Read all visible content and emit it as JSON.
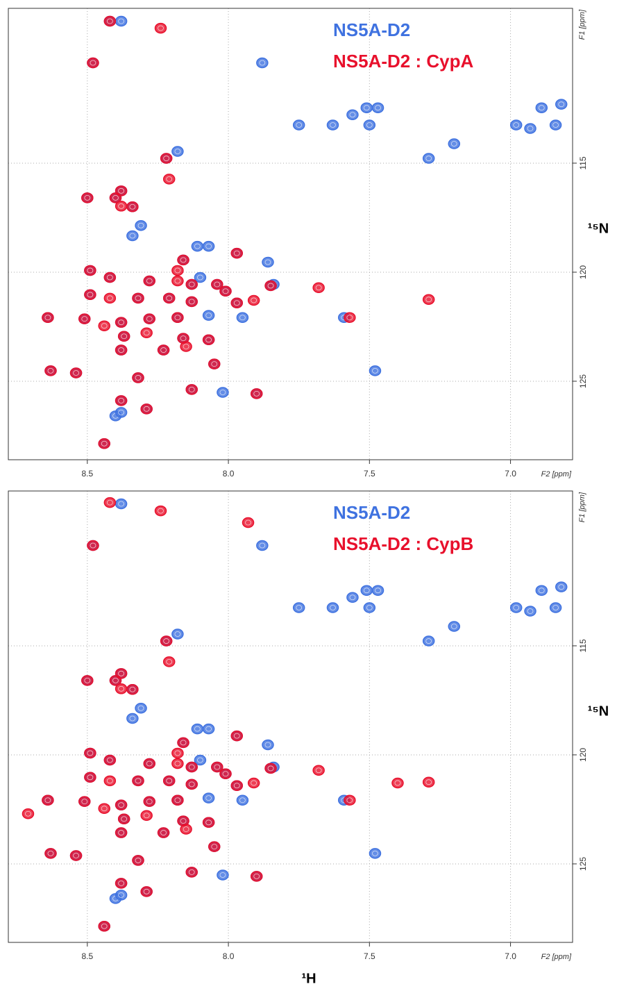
{
  "figure": {
    "xlabel": "¹H"
  },
  "chart_data": [
    {
      "type": "scatter",
      "x_axis_title": "F2 [ppm]",
      "y_axis_title": "F1 [ppm]",
      "ylabel": "¹⁵N",
      "xlim": [
        8.78,
        6.78
      ],
      "ylim": [
        107.9,
        128.6
      ],
      "y_inverted": true,
      "grid": true,
      "xticks": [
        8.5,
        {
          "value": 8,
          "label": "8.0"
        },
        7.5,
        {
          "value": 7,
          "label": "7.0"
        }
      ],
      "yticks": [
        115,
        120,
        125
      ],
      "series": [
        {
          "name": "NS5A-D2",
          "color": "#3f72e0",
          "x": [
            8.38,
            7.88,
            7.75,
            7.63,
            7.56,
            7.51,
            7.5,
            7.47,
            6.98,
            6.93,
            6.89,
            6.84,
            6.82,
            7.29,
            7.2,
            8.18,
            8.31,
            8.34,
            8.11,
            8.07,
            7.86,
            7.84,
            7.95,
            7.59,
            7.48,
            8.02,
            8.4,
            8.38,
            8.1,
            8.07,
            8.42,
            8.48,
            8.22,
            8.5,
            8.4,
            8.38,
            8.34,
            7.97,
            8.16,
            8.49,
            8.42,
            8.28,
            8.13,
            8.04,
            8.01,
            7.85,
            8.49,
            8.32,
            8.21,
            8.13,
            7.97,
            8.64,
            8.51,
            8.38,
            8.28,
            8.18,
            8.37,
            8.16,
            8.07,
            8.38,
            8.23,
            8.05,
            8.63,
            8.54,
            8.32,
            8.13,
            7.9,
            8.38,
            8.29,
            8.44
          ],
          "values": [
            108.49,
            110.4,
            113.25,
            113.25,
            112.78,
            112.46,
            113.25,
            112.46,
            113.25,
            113.41,
            112.46,
            113.25,
            112.3,
            114.78,
            114.11,
            114.46,
            117.86,
            118.33,
            118.81,
            118.81,
            119.54,
            120.56,
            122.08,
            122.08,
            124.52,
            125.51,
            126.59,
            126.43,
            120.24,
            121.98,
            108.49,
            110.4,
            114.78,
            116.59,
            116.59,
            116.27,
            117.0,
            119.13,
            119.44,
            119.92,
            120.24,
            120.4,
            120.56,
            120.56,
            120.87,
            120.62,
            121.03,
            121.19,
            121.19,
            121.35,
            121.41,
            122.08,
            122.14,
            122.3,
            122.14,
            122.08,
            122.94,
            123.03,
            123.1,
            123.57,
            123.57,
            124.21,
            124.52,
            124.62,
            124.84,
            125.38,
            125.57,
            125.89,
            126.27,
            127.86
          ]
        },
        {
          "name": "NS5A-D2 : CypA",
          "color": "#e8102c",
          "x": [
            8.42,
            8.24,
            8.48,
            8.22,
            8.21,
            8.5,
            8.4,
            8.38,
            8.38,
            8.34,
            7.97,
            8.16,
            8.18,
            8.49,
            8.42,
            8.28,
            8.18,
            8.13,
            8.04,
            8.01,
            7.85,
            7.68,
            8.49,
            8.42,
            8.32,
            8.21,
            8.13,
            7.97,
            7.91,
            8.64,
            8.51,
            8.44,
            8.38,
            8.28,
            8.18,
            8.37,
            8.29,
            8.16,
            8.07,
            8.38,
            8.23,
            8.15,
            8.05,
            8.63,
            8.54,
            8.32,
            8.13,
            7.9,
            8.38,
            8.29,
            8.44,
            7.57,
            7.29
          ],
          "values": [
            108.49,
            108.81,
            110.4,
            114.78,
            115.73,
            116.59,
            116.59,
            116.27,
            116.97,
            117.0,
            119.13,
            119.44,
            119.92,
            119.92,
            120.24,
            120.4,
            120.4,
            120.56,
            120.56,
            120.87,
            120.62,
            120.71,
            121.03,
            121.19,
            121.19,
            121.19,
            121.35,
            121.41,
            121.29,
            122.08,
            122.14,
            122.46,
            122.3,
            122.14,
            122.08,
            122.94,
            122.78,
            123.03,
            123.1,
            123.57,
            123.57,
            123.41,
            124.21,
            124.52,
            124.62,
            124.84,
            125.38,
            125.57,
            125.89,
            126.27,
            127.86,
            122.08,
            121.25
          ]
        }
      ]
    },
    {
      "type": "scatter",
      "x_axis_title": "F2 [ppm]",
      "y_axis_title": "F1 [ppm]",
      "ylabel": "¹⁵N",
      "xlim": [
        8.78,
        6.78
      ],
      "ylim": [
        107.9,
        128.6
      ],
      "y_inverted": true,
      "grid": true,
      "xticks": [
        8.5,
        {
          "value": 8,
          "label": "8.0"
        },
        7.5,
        {
          "value": 7,
          "label": "7.0"
        }
      ],
      "yticks": [
        115,
        120,
        125
      ],
      "series": [
        {
          "name": "NS5A-D2",
          "color": "#3f72e0",
          "x": [
            8.38,
            7.88,
            7.75,
            7.63,
            7.56,
            7.51,
            7.5,
            7.47,
            6.98,
            6.93,
            6.89,
            6.84,
            6.82,
            7.29,
            7.2,
            8.18,
            8.31,
            8.34,
            8.11,
            8.07,
            7.86,
            7.84,
            7.95,
            7.59,
            7.48,
            8.02,
            8.4,
            8.38,
            8.1,
            8.07,
            8.48,
            8.22,
            8.5,
            8.4,
            8.38,
            8.34,
            7.97,
            8.16,
            8.49,
            8.42,
            8.28,
            8.13,
            8.04,
            8.01,
            7.85,
            8.49,
            8.32,
            8.21,
            8.13,
            7.97,
            8.64,
            8.51,
            8.38,
            8.28,
            8.18,
            8.37,
            8.16,
            8.07,
            8.38,
            8.23,
            8.05,
            8.63,
            8.54,
            8.32,
            8.13,
            7.9,
            8.38,
            8.29,
            8.44
          ],
          "values": [
            108.49,
            110.4,
            113.25,
            113.25,
            112.78,
            112.46,
            113.25,
            112.46,
            113.25,
            113.41,
            112.46,
            113.25,
            112.3,
            114.78,
            114.11,
            114.46,
            117.86,
            118.33,
            118.81,
            118.81,
            119.54,
            120.56,
            122.08,
            122.08,
            124.52,
            125.51,
            126.59,
            126.43,
            120.24,
            121.98,
            110.4,
            114.78,
            116.59,
            116.59,
            116.27,
            117.0,
            119.13,
            119.44,
            119.92,
            120.24,
            120.4,
            120.56,
            120.56,
            120.87,
            120.62,
            121.03,
            121.19,
            121.19,
            121.35,
            121.41,
            122.08,
            122.14,
            122.3,
            122.14,
            122.08,
            122.94,
            123.03,
            123.1,
            123.57,
            123.57,
            124.21,
            124.52,
            124.62,
            124.84,
            125.38,
            125.57,
            125.89,
            126.27,
            127.86
          ]
        },
        {
          "name": "NS5A-D2 : CypB",
          "color": "#e8102c",
          "x": [
            8.24,
            8.48,
            8.22,
            8.21,
            8.5,
            8.4,
            8.38,
            8.38,
            8.34,
            7.97,
            8.16,
            8.18,
            8.49,
            8.42,
            8.28,
            8.18,
            8.13,
            8.04,
            8.01,
            7.85,
            7.68,
            8.49,
            8.42,
            8.32,
            8.21,
            8.13,
            7.97,
            7.91,
            8.64,
            8.51,
            8.44,
            8.38,
            8.28,
            8.18,
            8.37,
            8.29,
            8.16,
            8.07,
            8.38,
            8.23,
            8.15,
            8.05,
            8.63,
            8.54,
            8.32,
            8.13,
            7.9,
            8.38,
            8.29,
            8.44,
            7.57,
            7.29,
            7.4,
            8.71,
            7.93,
            8.42
          ],
          "values": [
            108.81,
            110.4,
            114.78,
            115.73,
            116.59,
            116.59,
            116.27,
            116.97,
            117.0,
            119.13,
            119.44,
            119.92,
            119.92,
            120.24,
            120.4,
            120.4,
            120.56,
            120.56,
            120.87,
            120.62,
            120.71,
            121.03,
            121.19,
            121.19,
            121.19,
            121.35,
            121.41,
            121.29,
            122.08,
            122.14,
            122.46,
            122.3,
            122.14,
            122.08,
            122.94,
            122.78,
            123.03,
            123.1,
            123.57,
            123.57,
            123.41,
            124.21,
            124.52,
            124.62,
            124.84,
            125.38,
            125.57,
            125.89,
            126.27,
            127.86,
            122.08,
            121.25,
            121.29,
            122.7,
            109.35,
            108.43
          ]
        }
      ]
    }
  ]
}
